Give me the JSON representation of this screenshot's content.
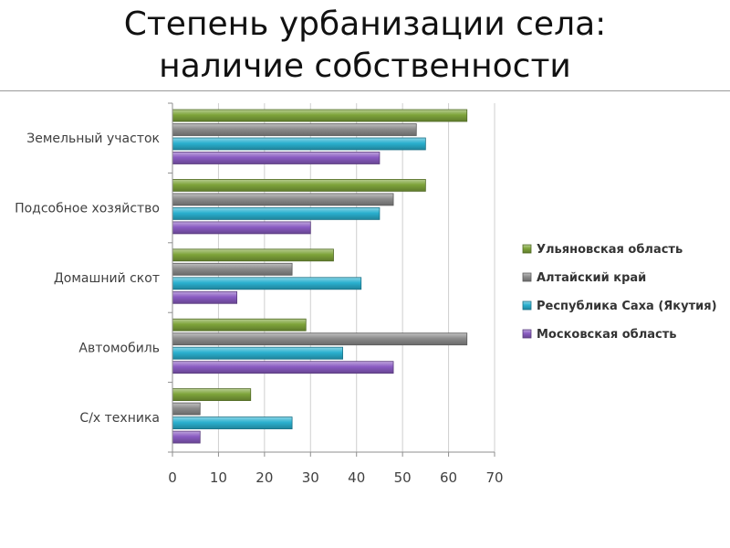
{
  "slide": {
    "title_line1": "Степень урбанизации села:",
    "title_line2": "наличие собственности"
  },
  "chart_data": {
    "type": "bar",
    "orientation": "horizontal",
    "categories": [
      "Земельный участок",
      "Подсобное хозяйство",
      "Домашний скот",
      "Автомобиль",
      "С/х техника"
    ],
    "series": [
      {
        "name": "Ульяновская область",
        "color": "#7ea43a",
        "values": [
          64,
          55,
          35,
          29,
          17
        ]
      },
      {
        "name": "Алтайский край",
        "color": "#8c8c8c",
        "values": [
          53,
          48,
          26,
          64,
          6
        ]
      },
      {
        "name": "Республика Саха (Якутия)",
        "color": "#2ab0cf",
        "values": [
          55,
          45,
          41,
          37,
          26
        ]
      },
      {
        "name": "Московская область",
        "color": "#8a5cc2",
        "values": [
          45,
          30,
          14,
          48,
          6
        ]
      }
    ],
    "xlim": [
      0,
      70
    ],
    "xticks": [
      "0",
      "10",
      "20",
      "30",
      "40",
      "50",
      "60",
      "70"
    ],
    "grid": true,
    "legend_position": "right"
  }
}
